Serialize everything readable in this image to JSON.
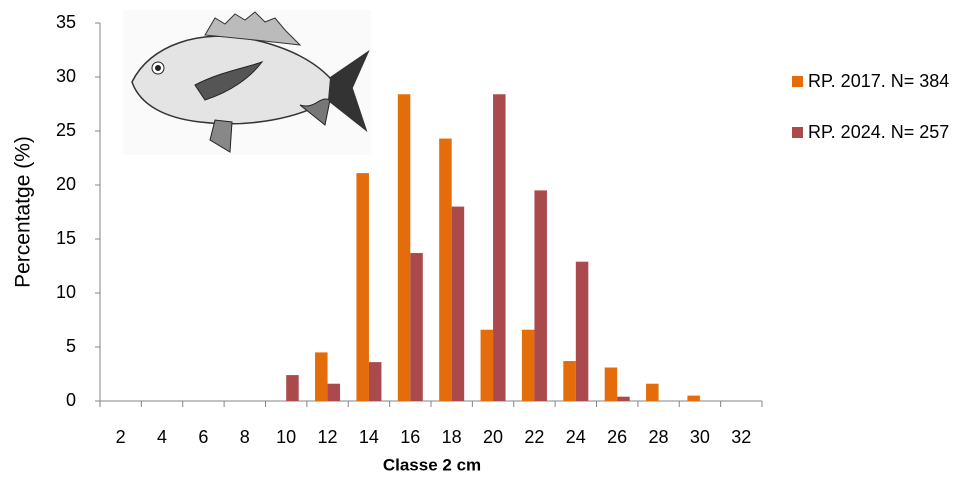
{
  "chart_data": {
    "type": "bar",
    "x_label": "Classe 2 cm",
    "y_label": "Percentatge (%)",
    "categories": [
      "2",
      "4",
      "6",
      "8",
      "10",
      "12",
      "14",
      "16",
      "18",
      "20",
      "22",
      "24",
      "26",
      "28",
      "30",
      "32"
    ],
    "series": [
      {
        "name": "RP. 2017. N= 384",
        "color": "#e46c0a",
        "values": [
          0,
          0,
          0,
          0,
          0,
          4.5,
          21.1,
          28.4,
          24.3,
          6.6,
          6.6,
          3.7,
          3.1,
          1.6,
          0.5,
          0
        ]
      },
      {
        "name": "RP. 2024. N= 257",
        "color": "#aa4a4c",
        "values": [
          0,
          0,
          0,
          0,
          2.4,
          1.6,
          3.6,
          13.7,
          18.0,
          28.4,
          19.5,
          12.9,
          0.4,
          0,
          0,
          0
        ]
      }
    ],
    "ylim": [
      0,
      35
    ],
    "yticks": [
      0,
      5,
      10,
      15,
      20,
      25,
      30,
      35
    ],
    "grid": false,
    "legend": "right"
  }
}
